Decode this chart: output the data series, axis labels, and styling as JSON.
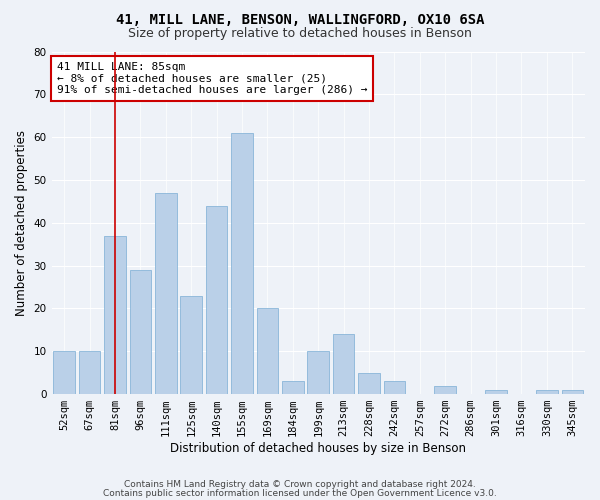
{
  "title1": "41, MILL LANE, BENSON, WALLINGFORD, OX10 6SA",
  "title2": "Size of property relative to detached houses in Benson",
  "xlabel": "Distribution of detached houses by size in Benson",
  "ylabel": "Number of detached properties",
  "categories": [
    "52sqm",
    "67sqm",
    "81sqm",
    "96sqm",
    "111sqm",
    "125sqm",
    "140sqm",
    "155sqm",
    "169sqm",
    "184sqm",
    "199sqm",
    "213sqm",
    "228sqm",
    "242sqm",
    "257sqm",
    "272sqm",
    "286sqm",
    "301sqm",
    "316sqm",
    "330sqm",
    "345sqm"
  ],
  "values": [
    10,
    10,
    37,
    29,
    47,
    23,
    44,
    61,
    20,
    3,
    10,
    14,
    5,
    3,
    0,
    2,
    0,
    1,
    0,
    1,
    1
  ],
  "bar_color": "#bad0e8",
  "bar_edge_color": "#7aadd4",
  "vline_x_index": 2,
  "vline_color": "#cc0000",
  "annotation_text": "41 MILL LANE: 85sqm\n← 8% of detached houses are smaller (25)\n91% of semi-detached houses are larger (286) →",
  "annotation_box_color": "#ffffff",
  "annotation_box_edge": "#cc0000",
  "footnote1": "Contains HM Land Registry data © Crown copyright and database right 2024.",
  "footnote2": "Contains public sector information licensed under the Open Government Licence v3.0.",
  "background_color": "#eef2f8",
  "ylim": [
    0,
    80
  ],
  "yticks": [
    0,
    10,
    20,
    30,
    40,
    50,
    60,
    70,
    80
  ],
  "title_fontsize": 10,
  "subtitle_fontsize": 9,
  "axis_label_fontsize": 8.5,
  "tick_fontsize": 7.5,
  "annotation_fontsize": 8
}
